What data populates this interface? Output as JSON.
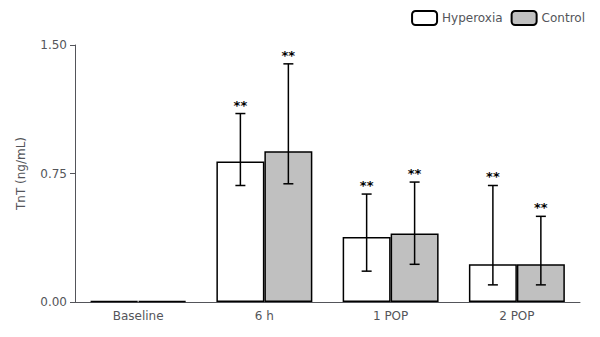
{
  "chart_data": {
    "type": "bar",
    "categories": [
      "Baseline",
      "6 h",
      "1 POP",
      "2 POP"
    ],
    "ylabel": "TnT (ng/mL)",
    "ylim": [
      0.0,
      1.5
    ],
    "yticks": [
      {
        "value": 0.0,
        "label": "0.00"
      },
      {
        "value": 0.75,
        "label": "0.75"
      },
      {
        "value": 1.5,
        "label": "1.50"
      }
    ],
    "grid": false,
    "legend": "upper right",
    "edge_color": "#000000",
    "series": [
      {
        "name": "Hyperoxia",
        "color": "#ffffff",
        "values": [
          0.005,
          0.82,
          0.38,
          0.22
        ],
        "error_low": [
          null,
          0.14,
          0.2,
          0.12
        ],
        "error_high": [
          null,
          0.28,
          0.25,
          0.46
        ],
        "annotations": [
          null,
          "**",
          "**",
          "**"
        ]
      },
      {
        "name": "Control",
        "color": "#c0c0c0",
        "values": [
          0.005,
          0.88,
          0.4,
          0.22
        ],
        "error_low": [
          null,
          0.19,
          0.18,
          0.12
        ],
        "error_high": [
          null,
          0.51,
          0.3,
          0.28
        ],
        "annotations": [
          null,
          "**",
          "**",
          "**"
        ]
      }
    ]
  }
}
